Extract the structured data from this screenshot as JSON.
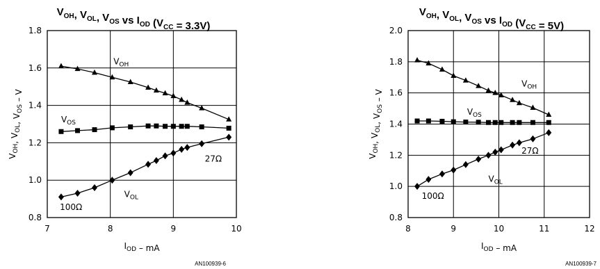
{
  "chart_data": [
    {
      "type": "line",
      "title": {
        "parts": [
          {
            "t": "V"
          },
          {
            "t": "OH",
            "sub": true
          },
          {
            "t": ", V"
          },
          {
            "t": "OL",
            "sub": true
          },
          {
            "t": ", V"
          },
          {
            "t": "OS",
            "sub": true
          },
          {
            "t": " vs I"
          },
          {
            "t": "OD",
            "sub": true
          },
          {
            "t": " (V"
          },
          {
            "t": "CC",
            "sub": true
          },
          {
            "t": " = 3.3V)"
          }
        ]
      },
      "xlabel": {
        "parts": [
          {
            "t": "I"
          },
          {
            "t": "OD",
            "sub": true
          },
          {
            "t": "  –  mA"
          }
        ]
      },
      "ylabel": {
        "parts": [
          {
            "t": "V"
          },
          {
            "t": "OH",
            "sub": true
          },
          {
            "t": ", V"
          },
          {
            "t": "OL",
            "sub": true
          },
          {
            "t": ", V"
          },
          {
            "t": "OS",
            "sub": true
          },
          {
            "t": "  –  V"
          }
        ]
      },
      "xlim": [
        7,
        10
      ],
      "ylim": [
        0.8,
        1.8
      ],
      "xticks": [
        7,
        8,
        9,
        10
      ],
      "yticks": [
        0.8,
        1.0,
        1.2,
        1.4,
        1.6,
        1.8
      ],
      "ytick_labels": [
        "0.8",
        "1.0",
        "1.2",
        "1.4",
        "1.6",
        "1.8"
      ],
      "grid": true,
      "series": [
        {
          "name": "VOH",
          "marker": "triangle",
          "x": [
            7.22,
            7.48,
            7.75,
            8.03,
            8.32,
            8.6,
            8.73,
            8.87,
            9.0,
            9.13,
            9.22,
            9.45,
            9.88
          ],
          "y": [
            1.61,
            1.595,
            1.575,
            1.55,
            1.525,
            1.495,
            1.48,
            1.465,
            1.45,
            1.43,
            1.415,
            1.385,
            1.325
          ]
        },
        {
          "name": "VOS",
          "marker": "square",
          "x": [
            7.22,
            7.48,
            7.75,
            8.03,
            8.32,
            8.6,
            8.73,
            8.87,
            9.0,
            9.13,
            9.22,
            9.45,
            9.88
          ],
          "y": [
            1.26,
            1.265,
            1.27,
            1.28,
            1.285,
            1.29,
            1.29,
            1.288,
            1.288,
            1.288,
            1.288,
            1.285,
            1.278
          ]
        },
        {
          "name": "VOL",
          "marker": "diamond",
          "x": [
            7.22,
            7.48,
            7.75,
            8.03,
            8.32,
            8.6,
            8.73,
            8.87,
            9.0,
            9.13,
            9.22,
            9.45,
            9.88
          ],
          "y": [
            0.91,
            0.93,
            0.96,
            1.0,
            1.04,
            1.085,
            1.105,
            1.13,
            1.145,
            1.165,
            1.175,
            1.195,
            1.23
          ]
        }
      ],
      "annotations": [
        {
          "parts": [
            {
              "t": "V"
            },
            {
              "t": "OH",
              "sub": true
            }
          ],
          "x": 8.05,
          "y": 1.62
        },
        {
          "parts": [
            {
              "t": "V"
            },
            {
              "t": "OS",
              "sub": true
            }
          ],
          "x": 7.22,
          "y": 1.31
        },
        {
          "parts": [
            {
              "t": "V"
            },
            {
              "t": "OL",
              "sub": true
            }
          ],
          "x": 8.22,
          "y": 0.91
        },
        {
          "parts": [
            {
              "t": "27Ω"
            }
          ],
          "x": 9.5,
          "y": 1.1
        },
        {
          "parts": [
            {
              "t": "100Ω"
            }
          ],
          "x": 7.2,
          "y": 0.84
        }
      ],
      "footer": "AN100939-6"
    },
    {
      "type": "line",
      "title": {
        "parts": [
          {
            "t": "V"
          },
          {
            "t": "OH",
            "sub": true
          },
          {
            "t": ", V"
          },
          {
            "t": "OL",
            "sub": true
          },
          {
            "t": ", V"
          },
          {
            "t": "OS",
            "sub": true
          },
          {
            "t": " vs I"
          },
          {
            "t": "OD",
            "sub": true
          },
          {
            "t": " (V"
          },
          {
            "t": "CC",
            "sub": true
          },
          {
            "t": " = 5V)"
          }
        ]
      },
      "xlabel": {
        "parts": [
          {
            "t": "I"
          },
          {
            "t": "OD",
            "sub": true
          },
          {
            "t": "  –  mA"
          }
        ]
      },
      "ylabel": {
        "parts": [
          {
            "t": "V"
          },
          {
            "t": "OH",
            "sub": true
          },
          {
            "t": ", V"
          },
          {
            "t": "OL",
            "sub": true
          },
          {
            "t": ", V"
          },
          {
            "t": "OS",
            "sub": true
          },
          {
            "t": "  –  V"
          }
        ]
      },
      "xlim": [
        8,
        12
      ],
      "ylim": [
        0.8,
        2.0
      ],
      "xticks": [
        8,
        9,
        10,
        11,
        12
      ],
      "yticks": [
        0.8,
        1.0,
        1.2,
        1.4,
        1.6,
        1.8,
        2.0
      ],
      "ytick_labels": [
        "0.8",
        "1.0",
        "1.2",
        "1.4",
        "1.6",
        "1.8",
        "2.0"
      ],
      "grid": true,
      "series": [
        {
          "name": "VOH",
          "marker": "triangle",
          "x": [
            8.2,
            8.45,
            8.75,
            9.0,
            9.27,
            9.55,
            9.77,
            9.92,
            10.05,
            10.3,
            10.45,
            10.75,
            11.1
          ],
          "y": [
            1.81,
            1.79,
            1.75,
            1.71,
            1.68,
            1.645,
            1.615,
            1.6,
            1.585,
            1.555,
            1.535,
            1.505,
            1.46
          ]
        },
        {
          "name": "VOS",
          "marker": "square",
          "x": [
            8.2,
            8.45,
            8.75,
            9.0,
            9.27,
            9.55,
            9.77,
            9.92,
            10.05,
            10.3,
            10.45,
            10.75,
            11.1
          ],
          "y": [
            1.42,
            1.42,
            1.418,
            1.415,
            1.413,
            1.412,
            1.41,
            1.41,
            1.41,
            1.41,
            1.41,
            1.41,
            1.41
          ]
        },
        {
          "name": "VOL",
          "marker": "diamond",
          "x": [
            8.2,
            8.45,
            8.75,
            9.0,
            9.27,
            9.55,
            9.77,
            9.92,
            10.05,
            10.3,
            10.45,
            10.75,
            11.1
          ],
          "y": [
            1.0,
            1.045,
            1.08,
            1.105,
            1.14,
            1.175,
            1.2,
            1.22,
            1.235,
            1.265,
            1.28,
            1.305,
            1.345
          ]
        }
      ],
      "annotations": [
        {
          "parts": [
            {
              "t": "V"
            },
            {
              "t": "OH",
              "sub": true
            }
          ],
          "x": 10.5,
          "y": 1.64
        },
        {
          "parts": [
            {
              "t": "V"
            },
            {
              "t": "OS",
              "sub": true
            }
          ],
          "x": 9.3,
          "y": 1.46
        },
        {
          "parts": [
            {
              "t": "V"
            },
            {
              "t": "OL",
              "sub": true
            }
          ],
          "x": 9.77,
          "y": 1.03
        },
        {
          "parts": [
            {
              "t": "27Ω"
            }
          ],
          "x": 10.5,
          "y": 1.21
        },
        {
          "parts": [
            {
              "t": "100Ω"
            }
          ],
          "x": 8.3,
          "y": 0.92
        }
      ],
      "footer": "AN100939-7"
    }
  ]
}
